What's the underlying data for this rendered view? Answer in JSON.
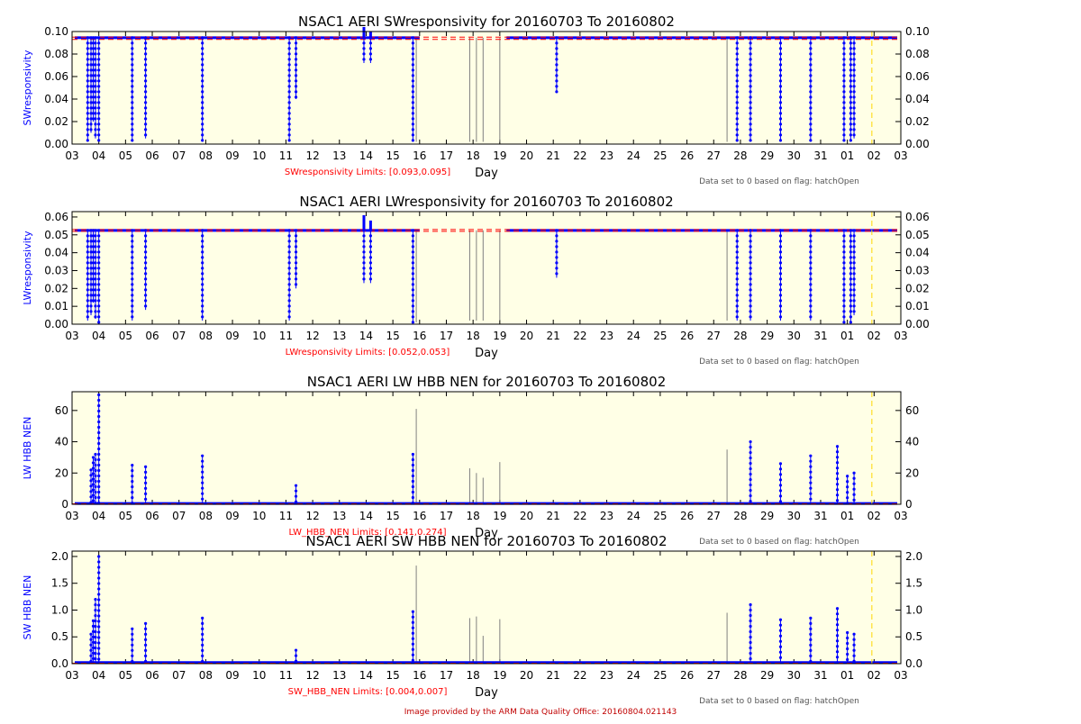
{
  "footer": "Image provided by the ARM Data Quality Office: 20160804.021143",
  "colors": {
    "background": "#FFFFE6",
    "data": "#0000FF",
    "limit": "#FF0000",
    "spike": "#808080",
    "marker": "#FFD700",
    "text": "#000000"
  },
  "x_ticks": [
    "03",
    "04",
    "05",
    "06",
    "07",
    "08",
    "09",
    "10",
    "11",
    "12",
    "13",
    "14",
    "15",
    "16",
    "17",
    "18",
    "19",
    "20",
    "21",
    "22",
    "23",
    "24",
    "25",
    "26",
    "27",
    "28",
    "29",
    "30",
    "31",
    "01",
    "02",
    "03"
  ],
  "xlabel": "Day",
  "note": "Data set to 0 based on flag: hatchOpen",
  "chart_data": [
    {
      "type": "line",
      "title": "NSAC1 AERI SWresponsivity for 20160703 To 20160802",
      "ylabel": "SWresponsivity",
      "limits_label": "SWresponsivity Limits: [0.093,0.095]",
      "limits": [
        0.093,
        0.095
      ],
      "ylim": [
        0,
        0.1
      ],
      "y_ticks": [
        "0.00",
        "0.02",
        "0.04",
        "0.06",
        "0.08",
        "0.10"
      ],
      "x_range": [
        "2016-07-03",
        "2016-08-03"
      ],
      "baseline": 0.0945,
      "gaps": [
        [
          "2016-07-16T00:00",
          "2016-07-19T06:00"
        ]
      ],
      "spikes": [
        {
          "x": "2016-07-03T14:00",
          "y": 0.002
        },
        {
          "x": "2016-07-03T17:00",
          "y": 0.01
        },
        {
          "x": "2016-07-03T19:00",
          "y": 0.02
        },
        {
          "x": "2016-07-03T21:00",
          "y": 0.005
        },
        {
          "x": "2016-07-04T00:00",
          "y": 0.002
        },
        {
          "x": "2016-07-05T06:00",
          "y": 0.002
        },
        {
          "x": "2016-07-05T18:00",
          "y": 0.005
        },
        {
          "x": "2016-07-07T21:00",
          "y": 0.002
        },
        {
          "x": "2016-07-11T03:00",
          "y": 0.002
        },
        {
          "x": "2016-07-11T09:00",
          "y": 0.04
        },
        {
          "x": "2016-07-13T22:00",
          "y": 0.072
        },
        {
          "x": "2016-07-14T04:00",
          "y": 0.072
        },
        {
          "x": "2016-07-15T18:00",
          "y": 0.002
        },
        {
          "x": "2016-07-21T03:00",
          "y": 0.046
        },
        {
          "x": "2016-07-27T21:00",
          "y": 0.002
        },
        {
          "x": "2016-07-28T09:00",
          "y": 0.002
        },
        {
          "x": "2016-07-29T12:00",
          "y": 0.002
        },
        {
          "x": "2016-07-30T15:00",
          "y": 0.002
        },
        {
          "x": "2016-07-31T21:00",
          "y": 0.002
        },
        {
          "x": "2016-08-01T03:00",
          "y": 0.002
        },
        {
          "x": "2016-08-01T06:00",
          "y": 0.005
        }
      ],
      "peaks": [
        {
          "x": "2016-07-13T22:00",
          "y": 0.104
        },
        {
          "x": "2016-07-14T04:00",
          "y": 0.1
        }
      ],
      "grey_spikes": [
        {
          "x": "2016-07-15T21:00",
          "y": 0.002
        },
        {
          "x": "2016-07-17T21:00",
          "y": 0.002
        },
        {
          "x": "2016-07-18T03:00",
          "y": 0.002
        },
        {
          "x": "2016-07-18T09:00",
          "y": 0.002
        },
        {
          "x": "2016-07-19T00:00",
          "y": 0.002
        },
        {
          "x": "2016-07-27T12:00",
          "y": 0.002
        }
      ],
      "marker_x": "2016-08-01T22:00"
    },
    {
      "type": "line",
      "title": "NSAC1 AERI LWresponsivity for 20160703 To 20160802",
      "ylabel": "LWresponsivity",
      "limits_label": "LWresponsivity Limits: [0.052,0.053]",
      "limits": [
        0.052,
        0.053
      ],
      "ylim": [
        0,
        0.063
      ],
      "y_ticks": [
        "0.00",
        "0.01",
        "0.02",
        "0.03",
        "0.04",
        "0.05",
        "0.06"
      ],
      "x_range": [
        "2016-07-03",
        "2016-08-03"
      ],
      "baseline": 0.0525,
      "gaps": [
        [
          "2016-07-16T00:00",
          "2016-07-19T06:00"
        ]
      ],
      "spikes": [
        {
          "x": "2016-07-03T14:00",
          "y": 0.002
        },
        {
          "x": "2016-07-03T17:00",
          "y": 0.005
        },
        {
          "x": "2016-07-03T19:00",
          "y": 0.012
        },
        {
          "x": "2016-07-03T21:00",
          "y": 0.003
        },
        {
          "x": "2016-07-04T00:00",
          "y": 0.001
        },
        {
          "x": "2016-07-05T06:00",
          "y": 0.002
        },
        {
          "x": "2016-07-05T18:00",
          "y": 0.008
        },
        {
          "x": "2016-07-07T21:00",
          "y": 0.002
        },
        {
          "x": "2016-07-11T03:00",
          "y": 0.002
        },
        {
          "x": "2016-07-11T09:00",
          "y": 0.02
        },
        {
          "x": "2016-07-13T22:00",
          "y": 0.023
        },
        {
          "x": "2016-07-14T04:00",
          "y": 0.023
        },
        {
          "x": "2016-07-15T18:00",
          "y": 0.001
        },
        {
          "x": "2016-07-21T03:00",
          "y": 0.026
        },
        {
          "x": "2016-07-27T21:00",
          "y": 0.002
        },
        {
          "x": "2016-07-28T09:00",
          "y": 0.002
        },
        {
          "x": "2016-07-29T12:00",
          "y": 0.002
        },
        {
          "x": "2016-07-30T15:00",
          "y": 0.002
        },
        {
          "x": "2016-07-31T21:00",
          "y": 0.001
        },
        {
          "x": "2016-08-01T03:00",
          "y": 0.001
        },
        {
          "x": "2016-08-01T06:00",
          "y": 0.005
        }
      ],
      "peaks": [
        {
          "x": "2016-07-13T22:00",
          "y": 0.061
        },
        {
          "x": "2016-07-14T04:00",
          "y": 0.058
        }
      ],
      "grey_spikes": [
        {
          "x": "2016-07-15T21:00",
          "y": 0.001
        },
        {
          "x": "2016-07-17T21:00",
          "y": 0.002
        },
        {
          "x": "2016-07-18T03:00",
          "y": 0.002
        },
        {
          "x": "2016-07-18T09:00",
          "y": 0.002
        },
        {
          "x": "2016-07-19T00:00",
          "y": 0.002
        },
        {
          "x": "2016-07-27T12:00",
          "y": 0.002
        }
      ],
      "marker_x": "2016-08-01T22:00"
    },
    {
      "type": "line",
      "title": "NSAC1 AERI LW HBB NEN for 20160703 To 20160802",
      "ylabel": "LW HBB NEN",
      "limits_label": "LW_HBB_NEN Limits: [0.141,0.274]",
      "limits": [
        0.141,
        0.274
      ],
      "ylim": [
        0,
        72
      ],
      "y_ticks": [
        "0",
        "20",
        "40",
        "60"
      ],
      "x_range": [
        "2016-07-03",
        "2016-08-03"
      ],
      "baseline": 0.5,
      "gaps": [],
      "spikes": [
        {
          "x": "2016-07-03T17:00",
          "y": 22
        },
        {
          "x": "2016-07-03T19:00",
          "y": 30
        },
        {
          "x": "2016-07-03T21:00",
          "y": 32
        },
        {
          "x": "2016-07-04T00:00",
          "y": 70
        },
        {
          "x": "2016-07-05T06:00",
          "y": 25
        },
        {
          "x": "2016-07-05T18:00",
          "y": 24
        },
        {
          "x": "2016-07-07T21:00",
          "y": 31
        },
        {
          "x": "2016-07-11T09:00",
          "y": 12
        },
        {
          "x": "2016-07-15T18:00",
          "y": 32
        },
        {
          "x": "2016-07-28T09:00",
          "y": 40
        },
        {
          "x": "2016-07-29T12:00",
          "y": 26
        },
        {
          "x": "2016-07-30T15:00",
          "y": 31
        },
        {
          "x": "2016-07-31T15:00",
          "y": 37
        },
        {
          "x": "2016-08-01T00:00",
          "y": 18
        },
        {
          "x": "2016-08-01T06:00",
          "y": 20
        }
      ],
      "peaks": [],
      "grey_spikes": [
        {
          "x": "2016-07-15T21:00",
          "y": 61
        },
        {
          "x": "2016-07-17T21:00",
          "y": 23
        },
        {
          "x": "2016-07-18T03:00",
          "y": 20
        },
        {
          "x": "2016-07-18T09:00",
          "y": 17
        },
        {
          "x": "2016-07-19T00:00",
          "y": 27
        },
        {
          "x": "2016-07-27T12:00",
          "y": 35
        }
      ],
      "marker_x": "2016-08-01T22:00"
    },
    {
      "type": "line",
      "title": "NSAC1 AERI SW HBB NEN for 20160703 To 20160802",
      "ylabel": "SW HBB NEN",
      "limits_label": "SW_HBB_NEN Limits: [0.004,0.007]",
      "limits": [
        0.004,
        0.007
      ],
      "ylim": [
        0,
        2.1
      ],
      "y_ticks": [
        "0.0",
        "0.5",
        "1.0",
        "1.5",
        "2.0"
      ],
      "x_range": [
        "2016-07-03",
        "2016-08-03"
      ],
      "baseline": 0.02,
      "gaps": [],
      "spikes": [
        {
          "x": "2016-07-03T17:00",
          "y": 0.55
        },
        {
          "x": "2016-07-03T19:00",
          "y": 0.8
        },
        {
          "x": "2016-07-03T21:00",
          "y": 1.2
        },
        {
          "x": "2016-07-04T00:00",
          "y": 2.0
        },
        {
          "x": "2016-07-05T06:00",
          "y": 0.65
        },
        {
          "x": "2016-07-05T18:00",
          "y": 0.75
        },
        {
          "x": "2016-07-07T21:00",
          "y": 0.85
        },
        {
          "x": "2016-07-11T09:00",
          "y": 0.25
        },
        {
          "x": "2016-07-15T18:00",
          "y": 0.97
        },
        {
          "x": "2016-07-28T09:00",
          "y": 1.1
        },
        {
          "x": "2016-07-29T12:00",
          "y": 0.82
        },
        {
          "x": "2016-07-30T15:00",
          "y": 0.85
        },
        {
          "x": "2016-07-31T15:00",
          "y": 1.03
        },
        {
          "x": "2016-08-01T00:00",
          "y": 0.58
        },
        {
          "x": "2016-08-01T06:00",
          "y": 0.55
        }
      ],
      "peaks": [],
      "grey_spikes": [
        {
          "x": "2016-07-15T21:00",
          "y": 1.83
        },
        {
          "x": "2016-07-17T21:00",
          "y": 0.85
        },
        {
          "x": "2016-07-18T03:00",
          "y": 0.88
        },
        {
          "x": "2016-07-18T09:00",
          "y": 0.52
        },
        {
          "x": "2016-07-19T00:00",
          "y": 0.83
        },
        {
          "x": "2016-07-27T12:00",
          "y": 0.95
        }
      ],
      "marker_x": "2016-08-01T22:00"
    }
  ]
}
